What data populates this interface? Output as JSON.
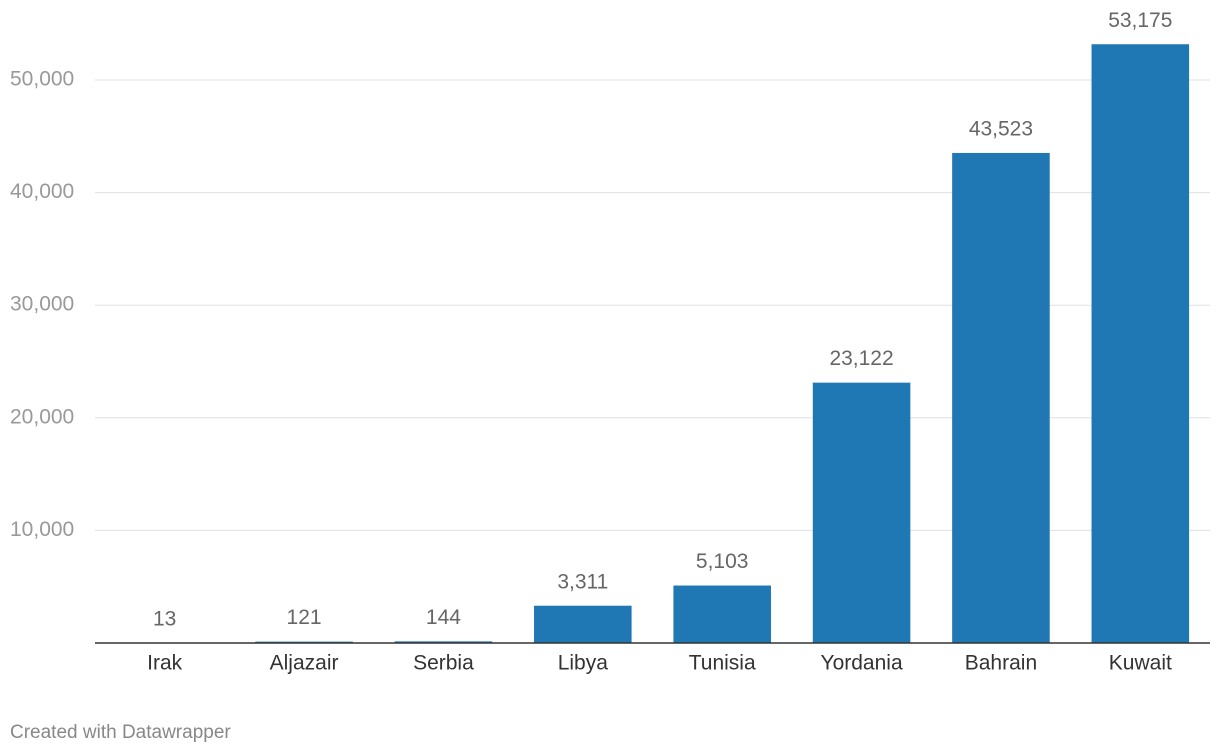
{
  "chart_data": {
    "type": "bar",
    "categories": [
      "Irak",
      "Aljazair",
      "Serbia",
      "Libya",
      "Tunisia",
      "Yordania",
      "Bahrain",
      "Kuwait"
    ],
    "values": [
      13,
      121,
      144,
      3311,
      5103,
      23122,
      43523,
      53175
    ],
    "value_labels": [
      "13",
      "121",
      "144",
      "3,311",
      "5,103",
      "23,122",
      "43,523",
      "53,175"
    ],
    "color": "#1f77b4",
    "ylim": [
      0,
      50000
    ],
    "yticks": [
      {
        "value": 10000,
        "label": "10,000"
      },
      {
        "value": 20000,
        "label": "20,000"
      },
      {
        "value": 30000,
        "label": "30,000"
      },
      {
        "value": 40000,
        "label": "40,000"
      },
      {
        "value": 50000,
        "label": "50,000"
      }
    ],
    "grid": true,
    "footer": "Created with Datawrapper"
  }
}
